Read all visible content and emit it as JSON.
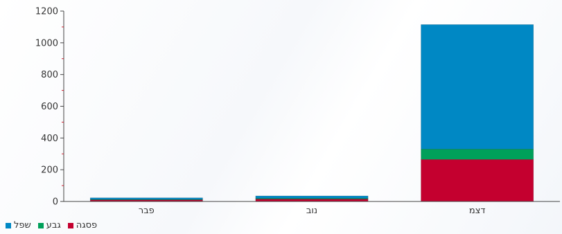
{
  "chart_data": {
    "type": "bar",
    "stacked": true,
    "categories": [
      "פבר",
      "נוב",
      "דצמ"
    ],
    "series": [
      {
        "name": "פסגה",
        "color": "#c4002f",
        "values": [
          10,
          15,
          265
        ]
      },
      {
        "name": "גבע",
        "color": "#00a05a",
        "values": [
          3,
          5,
          65
        ]
      },
      {
        "name": "שפל",
        "color": "#0088c4",
        "values": [
          10,
          15,
          785
        ]
      }
    ],
    "ylim": [
      0,
      1200
    ],
    "yticks": [
      0,
      200,
      400,
      600,
      800,
      1000,
      1200
    ],
    "title": "",
    "xlabel": "",
    "ylabel": "",
    "legend_position": "bottom-left"
  }
}
